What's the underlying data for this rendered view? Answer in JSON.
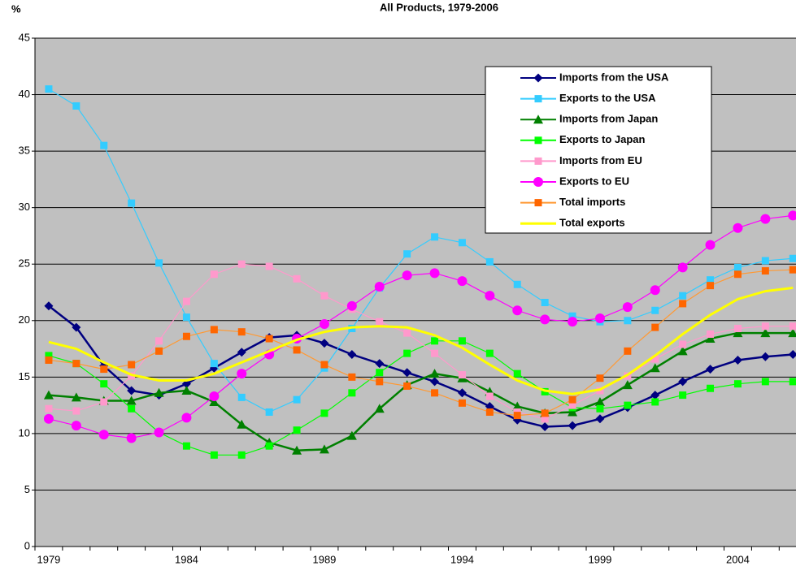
{
  "chart_data": {
    "type": "line",
    "title": "All Products, 1979-2006",
    "y_label": "%",
    "categories": [
      "1979",
      null,
      null,
      null,
      null,
      "1984",
      null,
      null,
      null,
      null,
      "1989",
      null,
      null,
      null,
      null,
      "1994",
      null,
      null,
      null,
      null,
      "1999",
      null,
      null,
      null,
      null,
      "2004",
      null,
      null
    ],
    "ylim": [
      0,
      45
    ],
    "yticks": [
      0,
      5,
      10,
      15,
      20,
      25,
      30,
      35,
      40,
      45
    ],
    "grid": true,
    "background": "#c0c0c0",
    "series": [
      {
        "name": "Imports from the USA",
        "color": "#000080",
        "marker": "diamond",
        "values": [
          21.3,
          19.4,
          16.0,
          13.8,
          13.4,
          14.4,
          15.8,
          17.2,
          18.5,
          18.7,
          18.0,
          17.0,
          16.2,
          15.4,
          14.6,
          13.6,
          12.4,
          11.2,
          10.6,
          10.7,
          11.3,
          12.3,
          13.4,
          14.6,
          15.7,
          16.5,
          16.8,
          17.0
        ]
      },
      {
        "name": "Exports to the USA",
        "color": "#33ccff",
        "marker": "square",
        "values": [
          40.5,
          39.0,
          35.5,
          30.4,
          25.1,
          20.3,
          16.2,
          13.2,
          11.9,
          13.0,
          15.8,
          19.3,
          22.9,
          25.9,
          27.4,
          26.9,
          25.2,
          23.2,
          21.6,
          20.4,
          19.9,
          20.0,
          20.9,
          22.2,
          23.6,
          24.7,
          25.3,
          25.5
        ]
      },
      {
        "name": "Imports from Japan",
        "color": "#008000",
        "marker": "triangle",
        "values": [
          13.4,
          13.2,
          12.9,
          12.9,
          13.6,
          13.8,
          12.8,
          10.8,
          9.2,
          8.5,
          8.6,
          9.8,
          12.2,
          14.3,
          15.3,
          14.9,
          13.7,
          12.4,
          11.8,
          11.9,
          12.8,
          14.3,
          15.8,
          17.3,
          18.4,
          18.9,
          18.9,
          18.9
        ]
      },
      {
        "name": "Exports to Japan",
        "color": "#00ff00",
        "marker": "square",
        "values": [
          16.9,
          16.2,
          14.4,
          12.2,
          10.1,
          8.9,
          8.1,
          8.1,
          8.9,
          10.3,
          11.8,
          13.6,
          15.4,
          17.1,
          18.2,
          18.2,
          17.1,
          15.3,
          13.7,
          12.3,
          12.2,
          12.5,
          12.8,
          13.4,
          14.0,
          14.4,
          14.6,
          14.6
        ]
      },
      {
        "name": "Imports from EU",
        "color": "#ff99cc",
        "marker": "square",
        "values": [
          12.2,
          12.0,
          12.8,
          15.1,
          18.2,
          21.7,
          24.1,
          25.0,
          24.8,
          23.7,
          22.2,
          21.0,
          19.9,
          18.9,
          17.1,
          15.2,
          13.3,
          11.9,
          11.3,
          12.5,
          13.8,
          15.1,
          16.6,
          17.9,
          18.8,
          19.3,
          19.5,
          19.5
        ]
      },
      {
        "name": "Exports to EU",
        "color": "#ff00ff",
        "marker": "circle",
        "values": [
          11.3,
          10.7,
          9.9,
          9.6,
          10.1,
          11.4,
          13.3,
          15.3,
          17.0,
          18.4,
          19.7,
          21.3,
          23.0,
          24.0,
          24.2,
          23.5,
          22.2,
          20.9,
          20.1,
          19.9,
          20.2,
          21.2,
          22.7,
          24.7,
          26.7,
          28.2,
          29.0,
          29.3
        ]
      },
      {
        "name": "Total imports",
        "color": "#ff6600",
        "line_color": "#ff9933",
        "marker": "square",
        "values": [
          16.5,
          16.2,
          15.7,
          16.1,
          17.3,
          18.6,
          19.2,
          19.0,
          18.4,
          17.4,
          16.1,
          15.0,
          14.6,
          14.2,
          13.6,
          12.7,
          11.9,
          11.6,
          11.8,
          13.0,
          14.9,
          17.3,
          19.4,
          21.5,
          23.1,
          24.1,
          24.4,
          24.5
        ]
      },
      {
        "name": "Total exports",
        "color": "#ffff00",
        "marker": "none",
        "values": [
          18.1,
          17.5,
          16.3,
          15.2,
          14.7,
          14.7,
          15.3,
          16.3,
          17.3,
          18.3,
          19.0,
          19.4,
          19.5,
          19.4,
          18.7,
          17.6,
          16.1,
          14.7,
          13.8,
          13.5,
          13.9,
          15.2,
          16.9,
          18.8,
          20.5,
          21.9,
          22.6,
          22.9
        ]
      }
    ]
  }
}
